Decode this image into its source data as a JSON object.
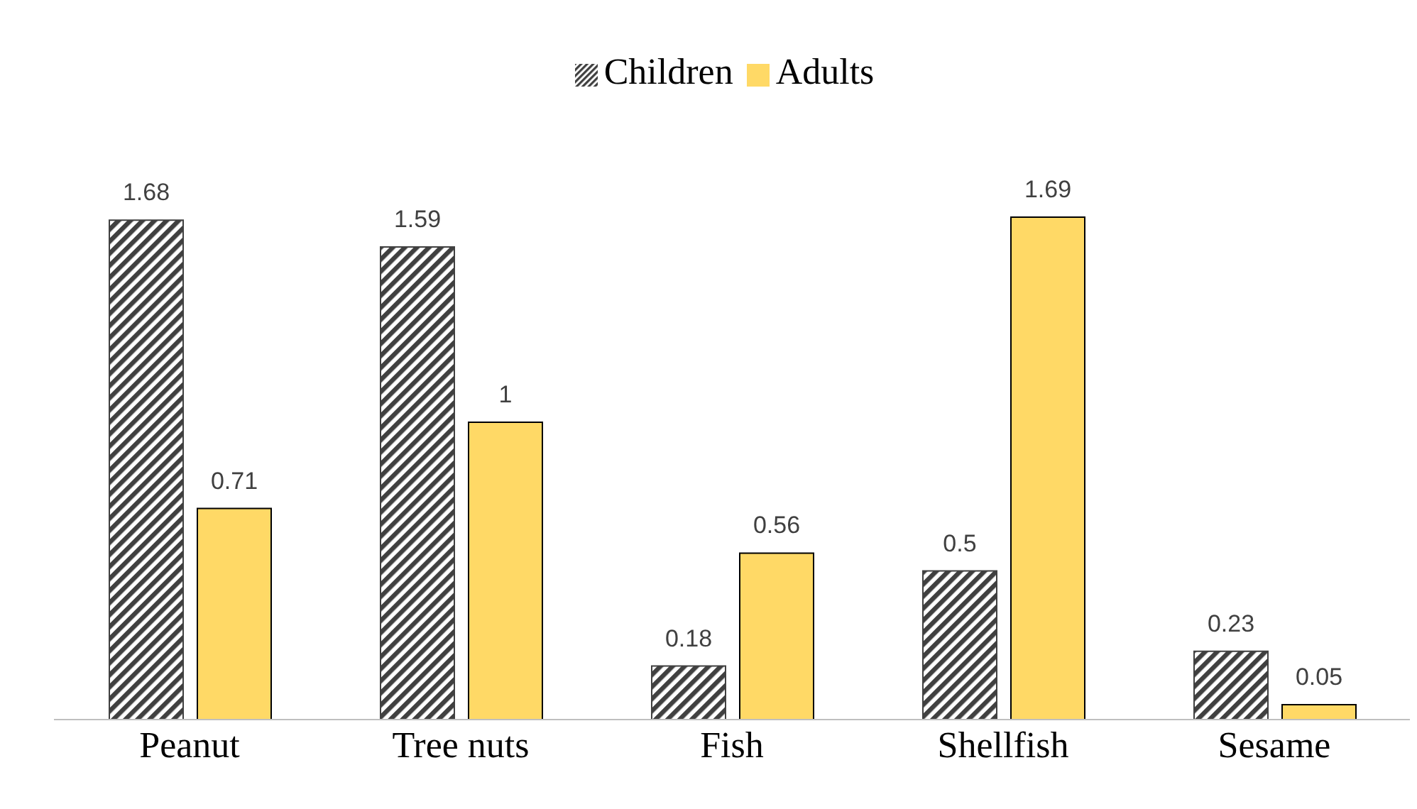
{
  "chart_data": {
    "type": "bar",
    "categories": [
      "Peanut",
      "Tree nuts",
      "Fish",
      "Shellfish",
      "Sesame"
    ],
    "series": [
      {
        "name": "Children",
        "color": "#404040",
        "values": [
          1.68,
          1.59,
          0.18,
          0.5,
          0.23
        ]
      },
      {
        "name": "Adults",
        "color": "#ffd966",
        "values": [
          0.71,
          1,
          0.56,
          1.69,
          0.05
        ]
      }
    ],
    "data_labels": true,
    "legend": "top",
    "grid": false
  }
}
